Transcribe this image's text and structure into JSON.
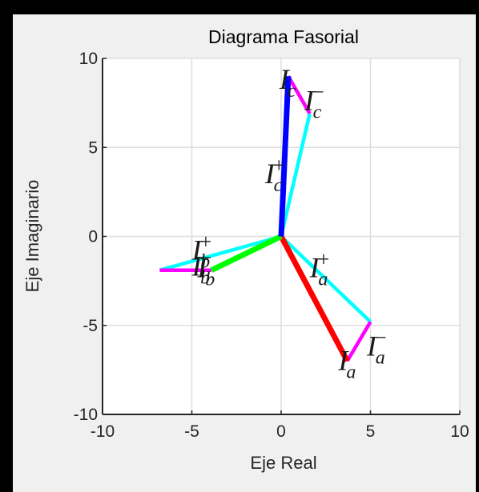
{
  "chart_data": {
    "type": "line",
    "title": "Diagrama Fasorial",
    "xlabel": "Eje Real",
    "ylabel": "Eje Imaginario",
    "xlim": [
      -10,
      10
    ],
    "ylim": [
      -10,
      10
    ],
    "xticks": [
      -10,
      -5,
      0,
      5,
      10
    ],
    "yticks": [
      -10,
      -5,
      0,
      5,
      10
    ],
    "grid": true,
    "series": [
      {
        "id": "Ia_pos",
        "color": "#ff0000",
        "from": [
          0,
          0
        ],
        "to": [
          3.7,
          -7.0
        ],
        "label_base": "I",
        "label_sub": "a",
        "label_sup": "+",
        "label_at": [
          1.6,
          -2.3
        ]
      },
      {
        "id": "Ia_neg",
        "color": "#00ffff",
        "from": [
          0,
          0
        ],
        "to": [
          5.0,
          -4.8
        ],
        "label_base": "I",
        "label_sub": "a",
        "label_sup": "−",
        "label_at": [
          4.8,
          -6.7
        ]
      },
      {
        "id": "Ia_zero",
        "color": "#ff00ff",
        "from": [
          5.0,
          -4.8
        ],
        "to": [
          3.7,
          -7.0
        ],
        "label_base": "I",
        "label_sub": "a",
        "label_sup": "",
        "label_at": [
          3.2,
          -7.5
        ]
      },
      {
        "id": "Ib_pos",
        "color": "#00ff00",
        "from": [
          0,
          0
        ],
        "to": [
          -3.9,
          -1.9
        ],
        "label_base": "I",
        "label_sub": "b",
        "label_sup": "+",
        "label_at": [
          -5.0,
          -1.3
        ]
      },
      {
        "id": "Ib_neg",
        "color": "#00ffff",
        "from": [
          0,
          0
        ],
        "to": [
          -6.8,
          -1.9
        ],
        "label_base": "I",
        "label_sub": "b",
        "label_sup": "−",
        "label_at": [
          -5.0,
          -2.2
        ]
      },
      {
        "id": "Ib_zero",
        "color": "#ff00ff",
        "from": [
          -6.8,
          -1.9
        ],
        "to": [
          -3.9,
          -1.9
        ],
        "label_base": "I",
        "label_sub": "b",
        "label_sup": "",
        "label_at": [
          -4.7,
          -2.3
        ]
      },
      {
        "id": "Ic_pos",
        "color": "#0000ff",
        "from": [
          0,
          0
        ],
        "to": [
          0.4,
          9.0
        ],
        "label_base": "I",
        "label_sub": "c",
        "label_sup": "+",
        "label_at": [
          -0.9,
          3.0
        ]
      },
      {
        "id": "Ic_neg",
        "color": "#00ffff",
        "from": [
          0,
          0
        ],
        "to": [
          1.6,
          6.9
        ],
        "label_base": "I",
        "label_sub": "c",
        "label_sup": "−",
        "label_at": [
          1.3,
          7.1
        ]
      },
      {
        "id": "Ic_zero",
        "color": "#ff00ff",
        "from": [
          1.6,
          6.9
        ],
        "to": [
          0.4,
          9.0
        ],
        "label_base": "I",
        "label_sub": "c",
        "label_sup": "",
        "label_at": [
          -0.1,
          8.3
        ]
      }
    ]
  }
}
